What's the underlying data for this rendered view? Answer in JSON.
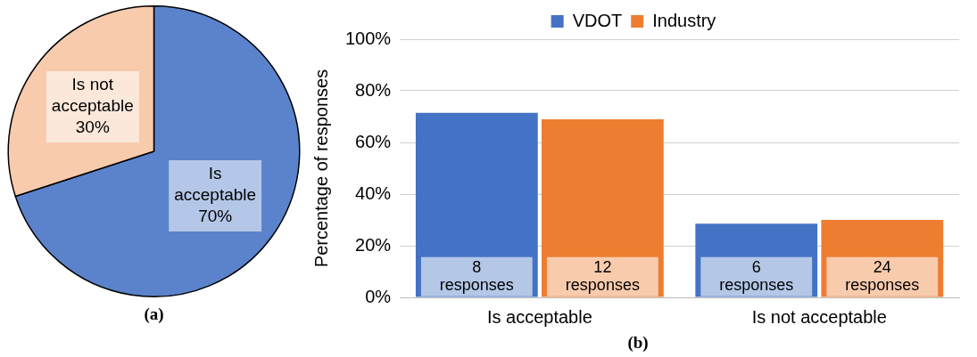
{
  "chart_data": [
    {
      "type": "pie",
      "categories": [
        "Is acceptable",
        "Is not acceptable"
      ],
      "values": [
        70,
        30
      ],
      "colors": [
        "#5b83cc",
        "#f8cbad"
      ],
      "value_labels": [
        "70%",
        "30%"
      ],
      "annotations": [
        "(a)"
      ]
    },
    {
      "type": "bar",
      "categories": [
        "Is acceptable",
        "Is not acceptable"
      ],
      "ylabel": "Percentage of responses",
      "series": [
        {
          "name": "VDOT",
          "color": "#4472c4",
          "values": [
            71.5,
            28.5
          ]
        },
        {
          "name": "Industry",
          "color": "#ed7d31",
          "values": [
            69,
            30
          ]
        }
      ],
      "ylim": [
        0,
        100
      ],
      "yticks": [
        {
          "value": 0,
          "label": "0%"
        },
        {
          "value": 20,
          "label": "20%"
        },
        {
          "value": 40,
          "label": "40%"
        },
        {
          "value": 60,
          "label": "60%"
        },
        {
          "value": 80,
          "label": "80%"
        },
        {
          "value": 100,
          "label": "100%"
        }
      ],
      "grid": "y",
      "legend": "top",
      "annotations": [
        "(b)",
        {
          "text": "8 responses",
          "x": "Is acceptable",
          "y": 8
        },
        {
          "text": "12 responses",
          "x": "Is acceptable",
          "y": 8
        },
        {
          "text": "6 responses",
          "x": "Is not acceptable",
          "y": 8
        },
        {
          "text": "24 responses",
          "x": "Is not acceptable",
          "y": 8
        }
      ]
    }
  ]
}
